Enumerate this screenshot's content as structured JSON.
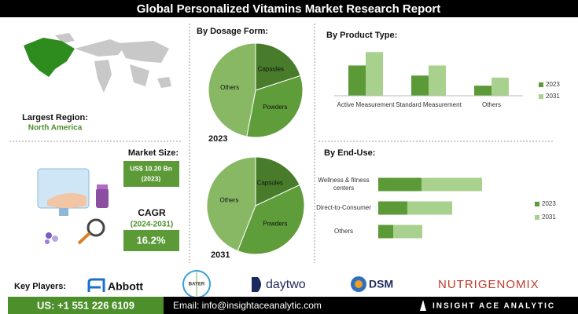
{
  "header": {
    "title": "Global Personalized Vitamins Market Research Report"
  },
  "region": {
    "label": "Largest Region:",
    "value": "North America"
  },
  "market_size": {
    "label": "Market Size:",
    "value": "US$ 10.20 Bn",
    "year": "(2023)"
  },
  "cagr": {
    "label": "CAGR",
    "period": "(2024-2031)",
    "value": "16.2%"
  },
  "chart_data": [
    {
      "type": "pie",
      "title": "By Dosage Form:",
      "subtitle": "2023",
      "categories": [
        "Capsules",
        "Powders",
        "Others"
      ],
      "values": [
        20,
        33,
        47
      ],
      "colors": [
        "#487c2b",
        "#5f9c3a",
        "#88b864"
      ]
    },
    {
      "type": "pie",
      "subtitle": "2031",
      "categories": [
        "Capsules",
        "Powders",
        "Others"
      ],
      "values": [
        18,
        38,
        44
      ],
      "colors": [
        "#487c2b",
        "#5f9c3a",
        "#88b864"
      ]
    },
    {
      "type": "bar",
      "title": "By  Product Type:",
      "categories": [
        "Active Measurement",
        "Standard Measurement",
        "Others"
      ],
      "series": [
        {
          "name": "2023",
          "color": "#5b9a37",
          "values": [
            45,
            30,
            15
          ]
        },
        {
          "name": "2031",
          "color": "#a9d18e",
          "values": [
            65,
            45,
            27
          ]
        }
      ],
      "ylim": [
        0,
        70
      ],
      "legend": "right"
    },
    {
      "type": "stacked_barh",
      "title": "By End-Use:",
      "categories": [
        "Wellness & fitness centers",
        "Direct-to-Consumer",
        "Others"
      ],
      "series": [
        {
          "name": "2023",
          "color": "#5b9a37",
          "values": [
            55,
            37,
            19
          ]
        },
        {
          "name": "2031",
          "color": "#a9d18e",
          "values": [
            77,
            57,
            37
          ]
        }
      ],
      "xlim": [
        0,
        140
      ],
      "legend": "right"
    }
  ],
  "key_players": {
    "label": "Key Players:",
    "companies": [
      "Abbott",
      "BAYER",
      "daytwo",
      "DSM",
      "NUTRIGENOMIX"
    ]
  },
  "footer": {
    "phone": "US: +1 551 226 6109",
    "email": "Email: info@insightaceanalytic.com",
    "brand": "INSIGHT ACE ANALYTIC"
  }
}
